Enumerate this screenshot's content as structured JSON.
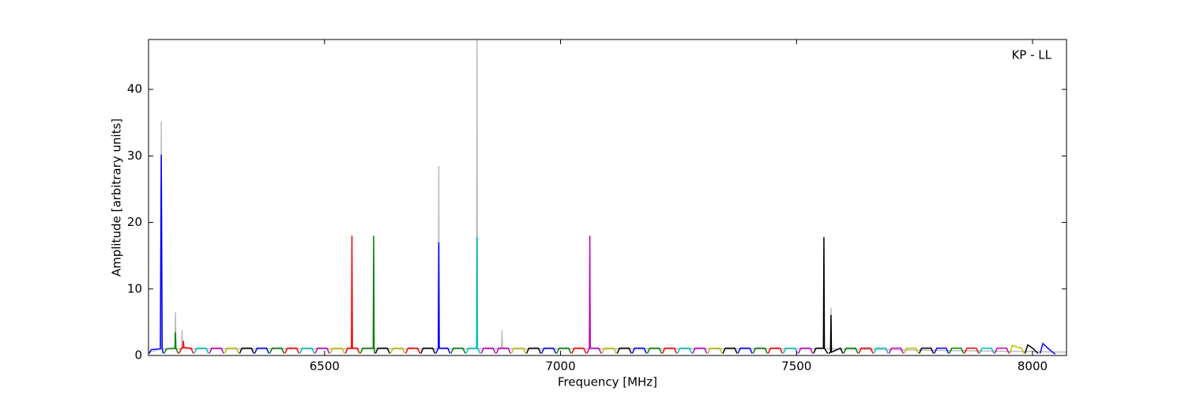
{
  "chart_data": {
    "type": "line",
    "xlabel": "Frequency [MHz]",
    "ylabel": "Amplitude [arbitrary units]",
    "annotation": "KP - LL",
    "xlim": [
      6127,
      8072
    ],
    "ylim": [
      0,
      47.5
    ],
    "xticks": [
      6500,
      7000,
      7500,
      8000
    ],
    "yticks": [
      0,
      10,
      20,
      30,
      40
    ],
    "series": [
      {
        "color": "#bbbbbb",
        "x": [
          6128,
          6153,
          6154,
          6155,
          6183,
          6184,
          6185,
          6197,
          6198,
          6199,
          6741,
          6742,
          6743,
          6822,
          6823,
          6824,
          6875,
          6876,
          6877,
          7572,
          7573,
          7574,
          8072
        ],
        "values": [
          0.5,
          1,
          35.2,
          1,
          1,
          6.5,
          1,
          1,
          3.8,
          1,
          1,
          28.5,
          1,
          1,
          48,
          1,
          1,
          3.8,
          1,
          1,
          7.2,
          1,
          0.5
        ]
      },
      {
        "color": "#0000ff",
        "x": [
          6128,
          6133,
          6152,
          6154,
          6156,
          6158
        ],
        "values": [
          0.3,
          0.9,
          1.0,
          30.2,
          1.0,
          0.3
        ]
      },
      {
        "color": "#008000",
        "x": [
          6160,
          6165,
          6183,
          6184,
          6185,
          6190
        ],
        "values": [
          0.3,
          1.0,
          1.1,
          3.5,
          1.1,
          0.3
        ]
      },
      {
        "color": "#ff0000",
        "x": [
          6192,
          6197,
          6200,
          6201,
          6202,
          6217,
          6222
        ],
        "values": [
          0.3,
          1.1,
          1.2,
          2.2,
          1.2,
          1.1,
          0.3
        ]
      },
      {
        "color": "#00bfbf",
        "x": [
          6224,
          6229,
          6249,
          6254
        ],
        "values": [
          0.3,
          1.1,
          1.1,
          0.3
        ]
      },
      {
        "color": "#bf00bf",
        "x": [
          6256,
          6261,
          6281,
          6286
        ],
        "values": [
          0.3,
          1.1,
          1.1,
          0.3
        ]
      },
      {
        "color": "#bfbf00",
        "x": [
          6288,
          6293,
          6313,
          6318
        ],
        "values": [
          0.3,
          1.1,
          1.1,
          0.3
        ]
      },
      {
        "color": "#000000",
        "x": [
          6320,
          6325,
          6345,
          6350
        ],
        "values": [
          0.3,
          1.1,
          1.1,
          0.3
        ]
      },
      {
        "color": "#0000ff",
        "x": [
          6352,
          6357,
          6377,
          6382
        ],
        "values": [
          0.3,
          1.1,
          1.1,
          0.3
        ]
      },
      {
        "color": "#008000",
        "x": [
          6384,
          6389,
          6409,
          6414
        ],
        "values": [
          0.3,
          1.1,
          1.1,
          0.3
        ]
      },
      {
        "color": "#ff0000",
        "x": [
          6416,
          6421,
          6441,
          6446
        ],
        "values": [
          0.3,
          1.1,
          1.1,
          0.3
        ]
      },
      {
        "color": "#00bfbf",
        "x": [
          6448,
          6453,
          6473,
          6478
        ],
        "values": [
          0.3,
          1.1,
          1.1,
          0.3
        ]
      },
      {
        "color": "#bf00bf",
        "x": [
          6480,
          6485,
          6505,
          6510
        ],
        "values": [
          0.3,
          1.1,
          1.1,
          0.3
        ]
      },
      {
        "color": "#bfbf00",
        "x": [
          6512,
          6517,
          6537,
          6542
        ],
        "values": [
          0.3,
          1.1,
          1.1,
          0.3
        ]
      },
      {
        "color": "#ff0000",
        "x": [
          6544,
          6549,
          6557,
          6558,
          6559,
          6569,
          6574
        ],
        "values": [
          0.3,
          1.1,
          1.1,
          18,
          1.1,
          1.1,
          0.3
        ]
      },
      {
        "color": "#008000",
        "x": [
          6576,
          6581,
          6603,
          6604,
          6605,
          6606
        ],
        "values": [
          0.3,
          1.1,
          1.1,
          18,
          1.1,
          0.3
        ]
      },
      {
        "color": "#000000",
        "x": [
          6608,
          6613,
          6633,
          6638
        ],
        "values": [
          0.3,
          1.1,
          1.1,
          0.3
        ]
      },
      {
        "color": "#bfbf00",
        "x": [
          6640,
          6645,
          6665,
          6670
        ],
        "values": [
          0.3,
          1.1,
          1.1,
          0.3
        ]
      },
      {
        "color": "#ff0000",
        "x": [
          6672,
          6677,
          6697,
          6702
        ],
        "values": [
          0.3,
          1.1,
          1.1,
          0.3
        ]
      },
      {
        "color": "#000000",
        "x": [
          6704,
          6709,
          6729,
          6734
        ],
        "values": [
          0.3,
          1.1,
          1.1,
          0.3
        ]
      },
      {
        "color": "#0000ff",
        "x": [
          6736,
          6741,
          6742,
          6743,
          6761,
          6766
        ],
        "values": [
          0.3,
          1.1,
          17,
          1.1,
          1.1,
          0.3
        ]
      },
      {
        "color": "#008000",
        "x": [
          6768,
          6773,
          6793,
          6798
        ],
        "values": [
          0.3,
          1.1,
          1.1,
          0.3
        ]
      },
      {
        "color": "#00bfbf",
        "x": [
          6800,
          6805,
          6822,
          6823,
          6824,
          6830
        ],
        "values": [
          0.3,
          1.1,
          1.1,
          17.8,
          1.1,
          0.3
        ]
      },
      {
        "color": "#bf00bf",
        "x": [
          6832,
          6837,
          6857,
          6862
        ],
        "values": [
          0.3,
          1.1,
          1.1,
          0.3
        ]
      },
      {
        "color": "#bf00bf",
        "x": [
          6864,
          6869,
          6889,
          6894
        ],
        "values": [
          0.3,
          1.1,
          1.1,
          0.3
        ]
      },
      {
        "color": "#bfbf00",
        "x": [
          6896,
          6901,
          6921,
          6926
        ],
        "values": [
          0.3,
          1.1,
          1.1,
          0.3
        ]
      },
      {
        "color": "#000000",
        "x": [
          6928,
          6933,
          6953,
          6958
        ],
        "values": [
          0.3,
          1.1,
          1.1,
          0.3
        ]
      },
      {
        "color": "#0000ff",
        "x": [
          6960,
          6965,
          6985,
          6990
        ],
        "values": [
          0.3,
          1.1,
          1.1,
          0.3
        ]
      },
      {
        "color": "#008000",
        "x": [
          6992,
          6997,
          7017,
          7022
        ],
        "values": [
          0.3,
          1.1,
          1.1,
          0.3
        ]
      },
      {
        "color": "#ff0000",
        "x": [
          7024,
          7029,
          7049,
          7054
        ],
        "values": [
          0.3,
          1.1,
          1.1,
          0.3
        ]
      },
      {
        "color": "#bf00bf",
        "x": [
          7056,
          7061,
          7062,
          7063,
          7081,
          7086
        ],
        "values": [
          0.3,
          1.1,
          18,
          1.1,
          1.1,
          0.3
        ]
      },
      {
        "color": "#bfbf00",
        "x": [
          7088,
          7093,
          7113,
          7118
        ],
        "values": [
          0.3,
          1.1,
          1.1,
          0.3
        ]
      },
      {
        "color": "#000000",
        "x": [
          7120,
          7125,
          7145,
          7150
        ],
        "values": [
          0.3,
          1.1,
          1.1,
          0.3
        ]
      },
      {
        "color": "#0000ff",
        "x": [
          7152,
          7157,
          7177,
          7182
        ],
        "values": [
          0.3,
          1.1,
          1.1,
          0.3
        ]
      },
      {
        "color": "#008000",
        "x": [
          7184,
          7189,
          7209,
          7214
        ],
        "values": [
          0.3,
          1.1,
          1.1,
          0.3
        ]
      },
      {
        "color": "#ff0000",
        "x": [
          7216,
          7221,
          7241,
          7246
        ],
        "values": [
          0.3,
          1.1,
          1.1,
          0.3
        ]
      },
      {
        "color": "#00bfbf",
        "x": [
          7248,
          7253,
          7273,
          7278
        ],
        "values": [
          0.3,
          1.1,
          1.1,
          0.3
        ]
      },
      {
        "color": "#bf00bf",
        "x": [
          7280,
          7285,
          7305,
          7310
        ],
        "values": [
          0.3,
          1.1,
          1.1,
          0.3
        ]
      },
      {
        "color": "#bfbf00",
        "x": [
          7312,
          7317,
          7337,
          7342
        ],
        "values": [
          0.3,
          1.1,
          1.1,
          0.3
        ]
      },
      {
        "color": "#000000",
        "x": [
          7344,
          7349,
          7369,
          7374
        ],
        "values": [
          0.3,
          1.1,
          1.1,
          0.3
        ]
      },
      {
        "color": "#0000ff",
        "x": [
          7376,
          7381,
          7401,
          7406
        ],
        "values": [
          0.3,
          1.1,
          1.1,
          0.3
        ]
      },
      {
        "color": "#008000",
        "x": [
          7408,
          7413,
          7433,
          7438
        ],
        "values": [
          0.3,
          1.1,
          1.1,
          0.3
        ]
      },
      {
        "color": "#ff0000",
        "x": [
          7440,
          7445,
          7465,
          7470
        ],
        "values": [
          0.3,
          1.1,
          1.1,
          0.3
        ]
      },
      {
        "color": "#00bfbf",
        "x": [
          7472,
          7477,
          7497,
          7502
        ],
        "values": [
          0.3,
          1.1,
          1.1,
          0.3
        ]
      },
      {
        "color": "#bf00bf",
        "x": [
          7504,
          7509,
          7529,
          7534
        ],
        "values": [
          0.3,
          1.1,
          1.1,
          0.3
        ]
      },
      {
        "color": "#000000",
        "x": [
          7536,
          7541,
          7557,
          7558,
          7559,
          7566
        ],
        "values": [
          0.3,
          1.1,
          1.1,
          17.8,
          1.1,
          0.3
        ]
      },
      {
        "color": "#000000",
        "x": [
          7568,
          7572,
          7573,
          7574,
          7593,
          7598
        ],
        "values": [
          0.3,
          0.5,
          6.1,
          0.5,
          1.1,
          0.3
        ]
      },
      {
        "color": "#008000",
        "x": [
          7600,
          7605,
          7625,
          7630
        ],
        "values": [
          0.3,
          1.1,
          1.1,
          0.3
        ]
      },
      {
        "color": "#ff0000",
        "x": [
          7632,
          7637,
          7657,
          7662
        ],
        "values": [
          0.3,
          1.1,
          1.1,
          0.3
        ]
      },
      {
        "color": "#00bfbf",
        "x": [
          7664,
          7669,
          7689,
          7694
        ],
        "values": [
          0.3,
          1.1,
          1.1,
          0.3
        ]
      },
      {
        "color": "#bf00bf",
        "x": [
          7696,
          7701,
          7721,
          7726
        ],
        "values": [
          0.3,
          1.1,
          1.1,
          0.3
        ]
      },
      {
        "color": "#bfbf00",
        "x": [
          7728,
          7733,
          7753,
          7758
        ],
        "values": [
          0.3,
          1.1,
          1.1,
          0.3
        ]
      },
      {
        "color": "#000000",
        "x": [
          7760,
          7765,
          7785,
          7790
        ],
        "values": [
          0.3,
          1.1,
          1.1,
          0.3
        ]
      },
      {
        "color": "#0000ff",
        "x": [
          7792,
          7797,
          7817,
          7822
        ],
        "values": [
          0.3,
          1.1,
          1.1,
          0.3
        ]
      },
      {
        "color": "#008000",
        "x": [
          7824,
          7829,
          7849,
          7854
        ],
        "values": [
          0.3,
          1.1,
          1.1,
          0.3
        ]
      },
      {
        "color": "#ff0000",
        "x": [
          7856,
          7861,
          7881,
          7886
        ],
        "values": [
          0.3,
          1.1,
          1.1,
          0.3
        ]
      },
      {
        "color": "#00bfbf",
        "x": [
          7888,
          7893,
          7913,
          7918
        ],
        "values": [
          0.3,
          1.1,
          1.1,
          0.3
        ]
      },
      {
        "color": "#bf00bf",
        "x": [
          7920,
          7925,
          7945,
          7950
        ],
        "values": [
          0.3,
          1.1,
          1.1,
          0.3
        ]
      },
      {
        "color": "#bfbf00",
        "x": [
          7952,
          7957,
          7977,
          7982
        ],
        "values": [
          0.3,
          1.5,
          1.1,
          0.3
        ]
      },
      {
        "color": "#000000",
        "x": [
          7984,
          7990,
          8000,
          8012
        ],
        "values": [
          0.3,
          1.6,
          1.1,
          0.3
        ]
      },
      {
        "color": "#0000ff",
        "x": [
          8016,
          8022,
          8034,
          8048
        ],
        "values": [
          0.3,
          1.8,
          1.0,
          0.2
        ]
      }
    ]
  }
}
